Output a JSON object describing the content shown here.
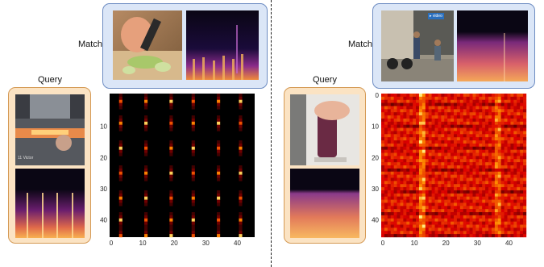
{
  "left": {
    "match_label": "Match",
    "query_label": "Query",
    "query_photo_caption": "11 Victor",
    "matrix": {
      "yticks": [
        "10",
        "20",
        "30",
        "40"
      ],
      "xticks": [
        "0",
        "10",
        "20",
        "30",
        "40"
      ]
    }
  },
  "right": {
    "match_label": "Match",
    "query_label": "Query",
    "match_photo_badge": "▸ video",
    "matrix": {
      "yticks": [
        "0",
        "10",
        "20",
        "30",
        "40"
      ],
      "xticks": [
        "0",
        "10",
        "20",
        "30",
        "40"
      ]
    }
  },
  "colors": {
    "match_box": "#dbe6f7",
    "query_box": "#fbe3c3",
    "heat_low": "#000000",
    "heat_mid": "#cc0000",
    "heat_high": "#ffff66"
  },
  "chart_data": [
    {
      "type": "heatmap",
      "title": "",
      "xlabel": "",
      "ylabel": "",
      "xlim": [
        0,
        46
      ],
      "ylim": [
        46,
        0
      ],
      "xticks": [
        0,
        10,
        20,
        30,
        40
      ],
      "yticks": [
        10,
        20,
        30,
        40
      ],
      "grid": false,
      "pattern": "periodic bright cells at columns ~3,11,19,26,34,41 and rows ~2,9,17,25,33,40,46 on dark background"
    },
    {
      "type": "heatmap",
      "title": "",
      "xlabel": "",
      "ylabel": "",
      "xlim": [
        0,
        46
      ],
      "ylim": [
        46,
        0
      ],
      "xticks": [
        0,
        10,
        20,
        30,
        40
      ],
      "yticks": [
        0,
        10,
        20,
        30,
        40
      ],
      "grid": false,
      "pattern": "dense red/orange field with bright columns near 13 and 36"
    }
  ]
}
